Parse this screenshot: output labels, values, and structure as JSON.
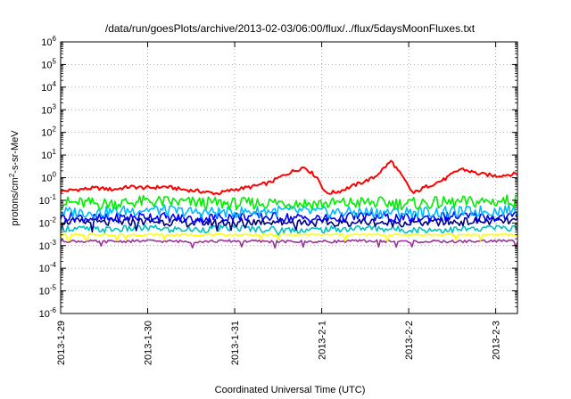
{
  "chart_data": {
    "type": "line",
    "title": "/data/run/goesPlots/archive/2013-02-03/06:00/flux/../flux/5daysMoonFluxes.txt",
    "xlabel": "Coordinated Universal Time (UTC)",
    "ylabel_parts": [
      "protons/cm",
      "2",
      "-s-sr-MeV"
    ],
    "y_scale": "log",
    "ylim": [
      1e-06,
      1000000.0
    ],
    "y_ticks": [
      {
        "base": "10",
        "exp": "-6",
        "value": -6
      },
      {
        "base": "10",
        "exp": "-5",
        "value": -5
      },
      {
        "base": "10",
        "exp": "-4",
        "value": -4
      },
      {
        "base": "10",
        "exp": "-3",
        "value": -3
      },
      {
        "base": "10",
        "exp": "-2",
        "value": -2
      },
      {
        "base": "10",
        "exp": "-1",
        "value": -1
      },
      {
        "base": "10",
        "exp": "0",
        "value": 0
      },
      {
        "base": "10",
        "exp": "1",
        "value": 1
      },
      {
        "base": "10",
        "exp": "2",
        "value": 2
      },
      {
        "base": "10",
        "exp": "3",
        "value": 3
      },
      {
        "base": "10",
        "exp": "4",
        "value": 4
      },
      {
        "base": "10",
        "exp": "5",
        "value": 5
      },
      {
        "base": "10",
        "exp": "6",
        "value": 6
      }
    ],
    "xlim": [
      "2013-01-29T00:00",
      "2013-02-03T06:00"
    ],
    "x_ticks": [
      "2013-1-29",
      "2013-1-30",
      "2013-1-31",
      "2013-2-1",
      "2013-2-2",
      "2013-2-3"
    ],
    "grid": true,
    "series": [
      {
        "color": "#ff0000",
        "x_days": [
          0,
          0.2,
          0.4,
          0.6,
          0.8,
          1.0,
          1.2,
          1.4,
          1.6,
          1.8,
          2.0,
          2.2,
          2.4,
          2.6,
          2.8,
          2.95,
          3.05,
          3.2,
          3.4,
          3.6,
          3.8,
          3.95,
          4.05,
          4.2,
          4.4,
          4.6,
          4.8,
          5.0,
          5.25
        ],
        "values": [
          0.25,
          0.3,
          0.35,
          0.3,
          0.4,
          0.35,
          0.4,
          0.3,
          0.25,
          0.2,
          0.3,
          0.4,
          0.6,
          1.5,
          3.0,
          1.0,
          0.2,
          0.25,
          0.5,
          1.0,
          5.5,
          0.8,
          0.2,
          0.4,
          0.8,
          2.5,
          1.5,
          1.2,
          1.5
        ]
      },
      {
        "color": "#00ee00",
        "x_days": [
          0,
          0.5,
          1.0,
          1.5,
          2.0,
          2.5,
          3.0,
          3.5,
          4.0,
          4.5,
          5.0,
          5.25
        ],
        "values": [
          0.08,
          0.07,
          0.09,
          0.08,
          0.07,
          0.08,
          0.07,
          0.08,
          0.07,
          0.08,
          0.09,
          0.1
        ]
      },
      {
        "color": "#00bbff",
        "x_days": [
          0,
          0.5,
          1.0,
          1.5,
          2.0,
          2.5,
          3.0,
          3.5,
          4.0,
          4.5,
          5.0,
          5.25
        ],
        "values": [
          0.03,
          0.03,
          0.04,
          0.03,
          0.03,
          0.035,
          0.03,
          0.03,
          0.03,
          0.03,
          0.035,
          0.04
        ]
      },
      {
        "color": "#0000ff",
        "x_days": [
          0,
          0.5,
          1.0,
          1.5,
          2.0,
          2.5,
          3.0,
          3.5,
          4.0,
          4.5,
          5.0,
          5.25
        ],
        "values": [
          0.02,
          0.015,
          0.02,
          0.015,
          0.02,
          0.018,
          0.015,
          0.02,
          0.015,
          0.02,
          0.018,
          0.02
        ]
      },
      {
        "color": "#000080",
        "x_days": [
          0,
          0.5,
          1.0,
          1.5,
          2.0,
          2.5,
          3.0,
          3.5,
          4.0,
          4.5,
          5.0,
          5.25
        ],
        "values": [
          0.012,
          0.01,
          0.012,
          0.01,
          0.011,
          0.012,
          0.01,
          0.011,
          0.01,
          0.011,
          0.012,
          0.012
        ]
      },
      {
        "color": "#00c0c0",
        "x_days": [
          0,
          0.5,
          1.0,
          1.5,
          2.0,
          2.5,
          3.0,
          3.5,
          4.0,
          4.5,
          5.0,
          5.25
        ],
        "values": [
          0.006,
          0.005,
          0.006,
          0.005,
          0.006,
          0.005,
          0.005,
          0.006,
          0.005,
          0.005,
          0.006,
          0.006
        ]
      },
      {
        "color": "#ffff00",
        "x_days": [
          0,
          0.5,
          1.0,
          1.5,
          2.0,
          2.5,
          3.0,
          3.5,
          4.0,
          4.5,
          5.0,
          5.25
        ],
        "values": [
          0.003,
          0.003,
          0.003,
          0.003,
          0.003,
          0.003,
          0.003,
          0.003,
          0.003,
          0.003,
          0.003,
          0.003
        ]
      },
      {
        "color": "#993399",
        "x_days": [
          0,
          0.5,
          1.0,
          1.5,
          2.0,
          2.5,
          3.0,
          3.5,
          4.0,
          4.5,
          5.0,
          5.25
        ],
        "values": [
          0.0016,
          0.0015,
          0.0016,
          0.0015,
          0.0016,
          0.0015,
          0.0015,
          0.0016,
          0.0015,
          0.0015,
          0.0016,
          0.0016
        ]
      }
    ]
  }
}
